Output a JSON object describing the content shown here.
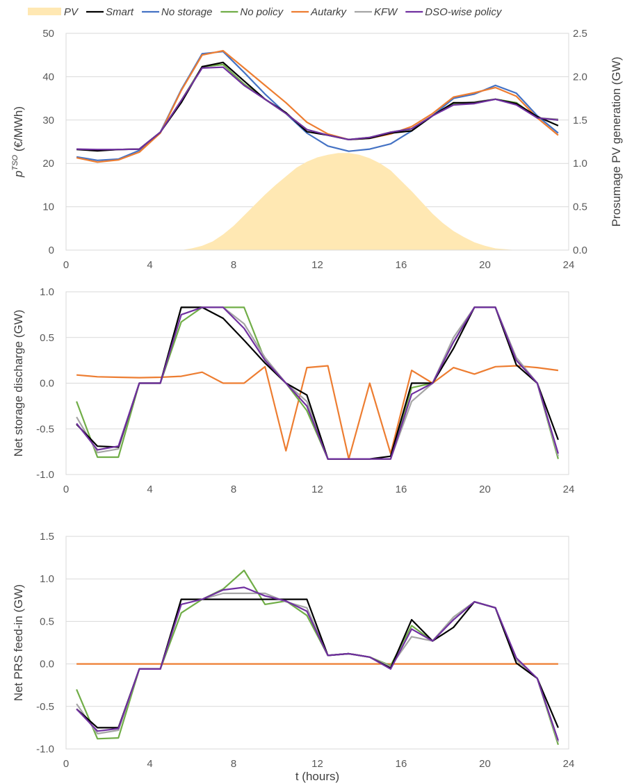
{
  "legend": {
    "items": [
      {
        "name": "PV",
        "color": "#ffe8b3",
        "kind": "area"
      },
      {
        "name": "Smart",
        "color": "#000000",
        "kind": "line"
      },
      {
        "name": "No storage",
        "color": "#4472c4",
        "kind": "line"
      },
      {
        "name": "No policy",
        "color": "#70ad47",
        "kind": "line"
      },
      {
        "name": "Autarky",
        "color": "#ed7d31",
        "kind": "line"
      },
      {
        "name": "KFW",
        "color": "#a5a5a5",
        "kind": "line"
      },
      {
        "name": "DSO-wise policy",
        "color": "#7030a0",
        "kind": "line"
      }
    ]
  },
  "chart_data": [
    {
      "type": "line",
      "xlim": [
        0,
        24
      ],
      "xticks": [
        0,
        4,
        8,
        12,
        16,
        20,
        24
      ],
      "ylim": [
        0,
        50
      ],
      "yticks": [
        0,
        10,
        20,
        30,
        40,
        50
      ],
      "ytick_labels": [
        "0",
        "10",
        "20",
        "30",
        "40",
        "50"
      ],
      "ylabel_main": "p",
      "ylabel_sup": "TSO",
      "ylabel_rest": " (€/MWh)",
      "y2lim": [
        0,
        2.5
      ],
      "y2ticks": [
        0,
        0.5,
        1,
        1.5,
        2,
        2.5
      ],
      "y2tick_labels": [
        "0.0",
        "0.5",
        "1.0",
        "1.5",
        "2.0",
        "2.5"
      ],
      "y2label": "Prosumage PV generation (GW)",
      "grid": true,
      "area": {
        "name": "PV",
        "axis": "right",
        "x": [
          5.5,
          6,
          6.5,
          7,
          7.5,
          8,
          8.5,
          9,
          9.5,
          10,
          10.5,
          11,
          11.5,
          12,
          12.5,
          13,
          13.5,
          14,
          14.5,
          15,
          15.5,
          16,
          16.5,
          17,
          17.5,
          18,
          18.5,
          19,
          19.5,
          20,
          20.5,
          21,
          21.5
        ],
        "values": [
          0,
          0.02,
          0.05,
          0.1,
          0.18,
          0.28,
          0.4,
          0.52,
          0.64,
          0.75,
          0.85,
          0.95,
          1.02,
          1.07,
          1.1,
          1.12,
          1.12,
          1.1,
          1.06,
          1.0,
          0.92,
          0.8,
          0.68,
          0.55,
          0.42,
          0.31,
          0.22,
          0.15,
          0.09,
          0.05,
          0.02,
          0.01,
          0
        ]
      },
      "x": [
        0.5,
        1.5,
        2.5,
        3.5,
        4.5,
        5.5,
        6.5,
        7.5,
        8.5,
        9.5,
        10.5,
        11.5,
        12.5,
        13.5,
        14.5,
        15.5,
        16.5,
        17.5,
        18.5,
        19.5,
        20.5,
        21.5,
        22.5,
        23.5
      ],
      "series": [
        {
          "name": "No storage",
          "values": [
            21.5,
            20.7,
            21.0,
            23.0,
            27.2,
            37.0,
            45.3,
            45.8,
            41.0,
            36.0,
            31.5,
            27.0,
            24.0,
            22.8,
            23.3,
            24.5,
            27.5,
            31.0,
            35.0,
            36.0,
            38.0,
            36.2,
            31.0,
            27.0
          ]
        },
        {
          "name": "Autarky",
          "values": [
            21.3,
            20.3,
            20.8,
            22.6,
            27.0,
            36.8,
            45.0,
            46.0,
            42.0,
            38.0,
            34.0,
            29.5,
            26.8,
            25.5,
            25.8,
            26.8,
            28.5,
            31.5,
            35.3,
            36.3,
            37.5,
            35.5,
            30.5,
            26.5
          ]
        },
        {
          "name": "KFW",
          "values": [
            23.3,
            23.0,
            23.2,
            23.3,
            27.2,
            34.5,
            42.3,
            42.8,
            38.3,
            34.8,
            31.5,
            27.8,
            26.5,
            25.5,
            26.0,
            27.2,
            28.0,
            31.0,
            33.8,
            34.2,
            34.8,
            34.0,
            30.5,
            30.2
          ]
        },
        {
          "name": "No policy",
          "values": [
            23.3,
            23.0,
            23.2,
            23.3,
            27.2,
            34.5,
            42.3,
            42.8,
            38.3,
            34.8,
            31.5,
            27.8,
            26.5,
            25.5,
            26.0,
            27.2,
            28.0,
            31.0,
            33.8,
            34.0,
            34.8,
            34.0,
            30.5,
            30.0
          ]
        },
        {
          "name": "Smart",
          "values": [
            23.2,
            22.9,
            23.2,
            23.3,
            27.2,
            34.0,
            42.3,
            43.3,
            39.0,
            34.8,
            31.7,
            27.3,
            26.5,
            25.5,
            25.8,
            27.0,
            27.5,
            31.0,
            34.0,
            34.0,
            34.8,
            33.8,
            30.8,
            28.7
          ]
        },
        {
          "name": "DSO-wise policy",
          "values": [
            23.3,
            23.2,
            23.2,
            23.3,
            27.2,
            34.5,
            42.0,
            42.2,
            38.0,
            34.8,
            31.5,
            27.8,
            26.5,
            25.5,
            26.0,
            27.2,
            28.0,
            31.0,
            33.5,
            33.8,
            34.8,
            33.5,
            30.5,
            30.0
          ]
        }
      ]
    },
    {
      "type": "line",
      "xlim": [
        0,
        24
      ],
      "xticks": [
        0,
        4,
        8,
        12,
        16,
        20,
        24
      ],
      "ylim": [
        -1,
        1
      ],
      "yticks": [
        -1,
        -0.5,
        0,
        0.5,
        1
      ],
      "ytick_labels": [
        "-1.0",
        "-0.5",
        "0.0",
        "0.5",
        "1.0"
      ],
      "ylabel": "Net storage discharge (GW)",
      "grid": true,
      "x": [
        0.5,
        1.5,
        2.5,
        3.5,
        4.5,
        5.5,
        6.5,
        7.5,
        8.5,
        9.5,
        10.5,
        11.5,
        12.5,
        13.5,
        14.5,
        15.5,
        16.5,
        17.5,
        18.5,
        19.5,
        20.5,
        21.5,
        22.5,
        23.5
      ],
      "series": [
        {
          "name": "Autarky",
          "values": [
            0.09,
            0.07,
            0.065,
            0.06,
            0.065,
            0.075,
            0.12,
            0.0,
            0.0,
            0.18,
            -0.74,
            0.17,
            0.19,
            -0.83,
            0.0,
            -0.77,
            0.14,
            0.0,
            0.17,
            0.1,
            0.18,
            0.19,
            0.17,
            0.14
          ]
        },
        {
          "name": "No policy",
          "values": [
            -0.2,
            -0.81,
            -0.81,
            0.0,
            0.0,
            0.67,
            0.83,
            0.83,
            0.83,
            0.25,
            0.0,
            -0.3,
            -0.83,
            -0.83,
            -0.83,
            -0.83,
            -0.05,
            0.0,
            0.45,
            0.83,
            0.83,
            0.25,
            0.0,
            -0.83
          ]
        },
        {
          "name": "KFW",
          "values": [
            -0.37,
            -0.76,
            -0.72,
            0.0,
            0.0,
            0.83,
            0.83,
            0.83,
            0.65,
            0.28,
            0.0,
            -0.2,
            -0.83,
            -0.83,
            -0.83,
            -0.83,
            -0.2,
            0.0,
            0.5,
            0.83,
            0.83,
            0.28,
            0.0,
            -0.8
          ]
        },
        {
          "name": "Smart",
          "values": [
            -0.45,
            -0.69,
            -0.7,
            0.0,
            0.0,
            0.83,
            0.83,
            0.71,
            0.47,
            0.22,
            0.0,
            -0.13,
            -0.83,
            -0.83,
            -0.83,
            -0.8,
            0.0,
            0.0,
            0.38,
            0.83,
            0.83,
            0.2,
            0.0,
            -0.62
          ]
        },
        {
          "name": "DSO-wise policy",
          "values": [
            -0.44,
            -0.73,
            -0.69,
            0.0,
            0.0,
            0.75,
            0.83,
            0.83,
            0.6,
            0.25,
            0.0,
            -0.25,
            -0.83,
            -0.83,
            -0.83,
            -0.83,
            -0.12,
            0.0,
            0.45,
            0.83,
            0.83,
            0.25,
            0.0,
            -0.77
          ]
        }
      ]
    },
    {
      "type": "line",
      "xlim": [
        0,
        24
      ],
      "xticks": [
        0,
        4,
        8,
        12,
        16,
        20,
        24
      ],
      "ylim": [
        -1,
        1.5
      ],
      "yticks": [
        -1,
        -0.5,
        0,
        0.5,
        1,
        1.5
      ],
      "ytick_labels": [
        "-1.0",
        "-0.5",
        "0.0",
        "0.5",
        "1.0",
        "1.5"
      ],
      "ylabel": "Net PRS feed-in (GW)",
      "xlabel": "t (hours)",
      "grid": true,
      "x": [
        0.5,
        1.5,
        2.5,
        3.5,
        4.5,
        5.5,
        6.5,
        7.5,
        8.5,
        9.5,
        10.5,
        11.5,
        12.5,
        13.5,
        14.5,
        15.5,
        16.5,
        17.5,
        18.5,
        19.5,
        20.5,
        21.5,
        22.5,
        23.5
      ],
      "series": [
        {
          "name": "Autarky",
          "values": [
            0,
            0,
            0,
            0,
            0,
            0,
            0,
            0,
            0,
            0,
            0,
            0,
            0,
            0,
            0,
            0,
            0,
            0,
            0,
            0,
            0,
            0,
            0,
            0
          ]
        },
        {
          "name": "No policy",
          "values": [
            -0.3,
            -0.88,
            -0.87,
            -0.06,
            -0.06,
            0.6,
            0.76,
            0.88,
            1.1,
            0.7,
            0.74,
            0.57,
            0.1,
            0.12,
            0.08,
            -0.02,
            0.45,
            0.27,
            0.55,
            0.73,
            0.66,
            0.05,
            -0.17,
            -0.95
          ]
        },
        {
          "name": "KFW",
          "values": [
            -0.47,
            -0.82,
            -0.78,
            -0.06,
            -0.06,
            0.76,
            0.76,
            0.83,
            0.83,
            0.83,
            0.73,
            0.66,
            0.1,
            0.12,
            0.08,
            -0.03,
            0.32,
            0.27,
            0.55,
            0.73,
            0.66,
            0.05,
            -0.17,
            -0.92
          ]
        },
        {
          "name": "Smart",
          "values": [
            -0.53,
            -0.75,
            -0.75,
            -0.06,
            -0.06,
            0.76,
            0.76,
            0.76,
            0.76,
            0.76,
            0.76,
            0.76,
            0.1,
            0.12,
            0.08,
            -0.05,
            0.52,
            0.27,
            0.43,
            0.73,
            0.66,
            0.01,
            -0.17,
            -0.75
          ]
        },
        {
          "name": "DSO-wise policy",
          "values": [
            -0.53,
            -0.79,
            -0.76,
            -0.06,
            -0.06,
            0.7,
            0.76,
            0.87,
            0.9,
            0.8,
            0.74,
            0.62,
            0.1,
            0.12,
            0.08,
            -0.06,
            0.41,
            0.27,
            0.52,
            0.73,
            0.66,
            0.07,
            -0.17,
            -0.9
          ]
        }
      ]
    }
  ]
}
